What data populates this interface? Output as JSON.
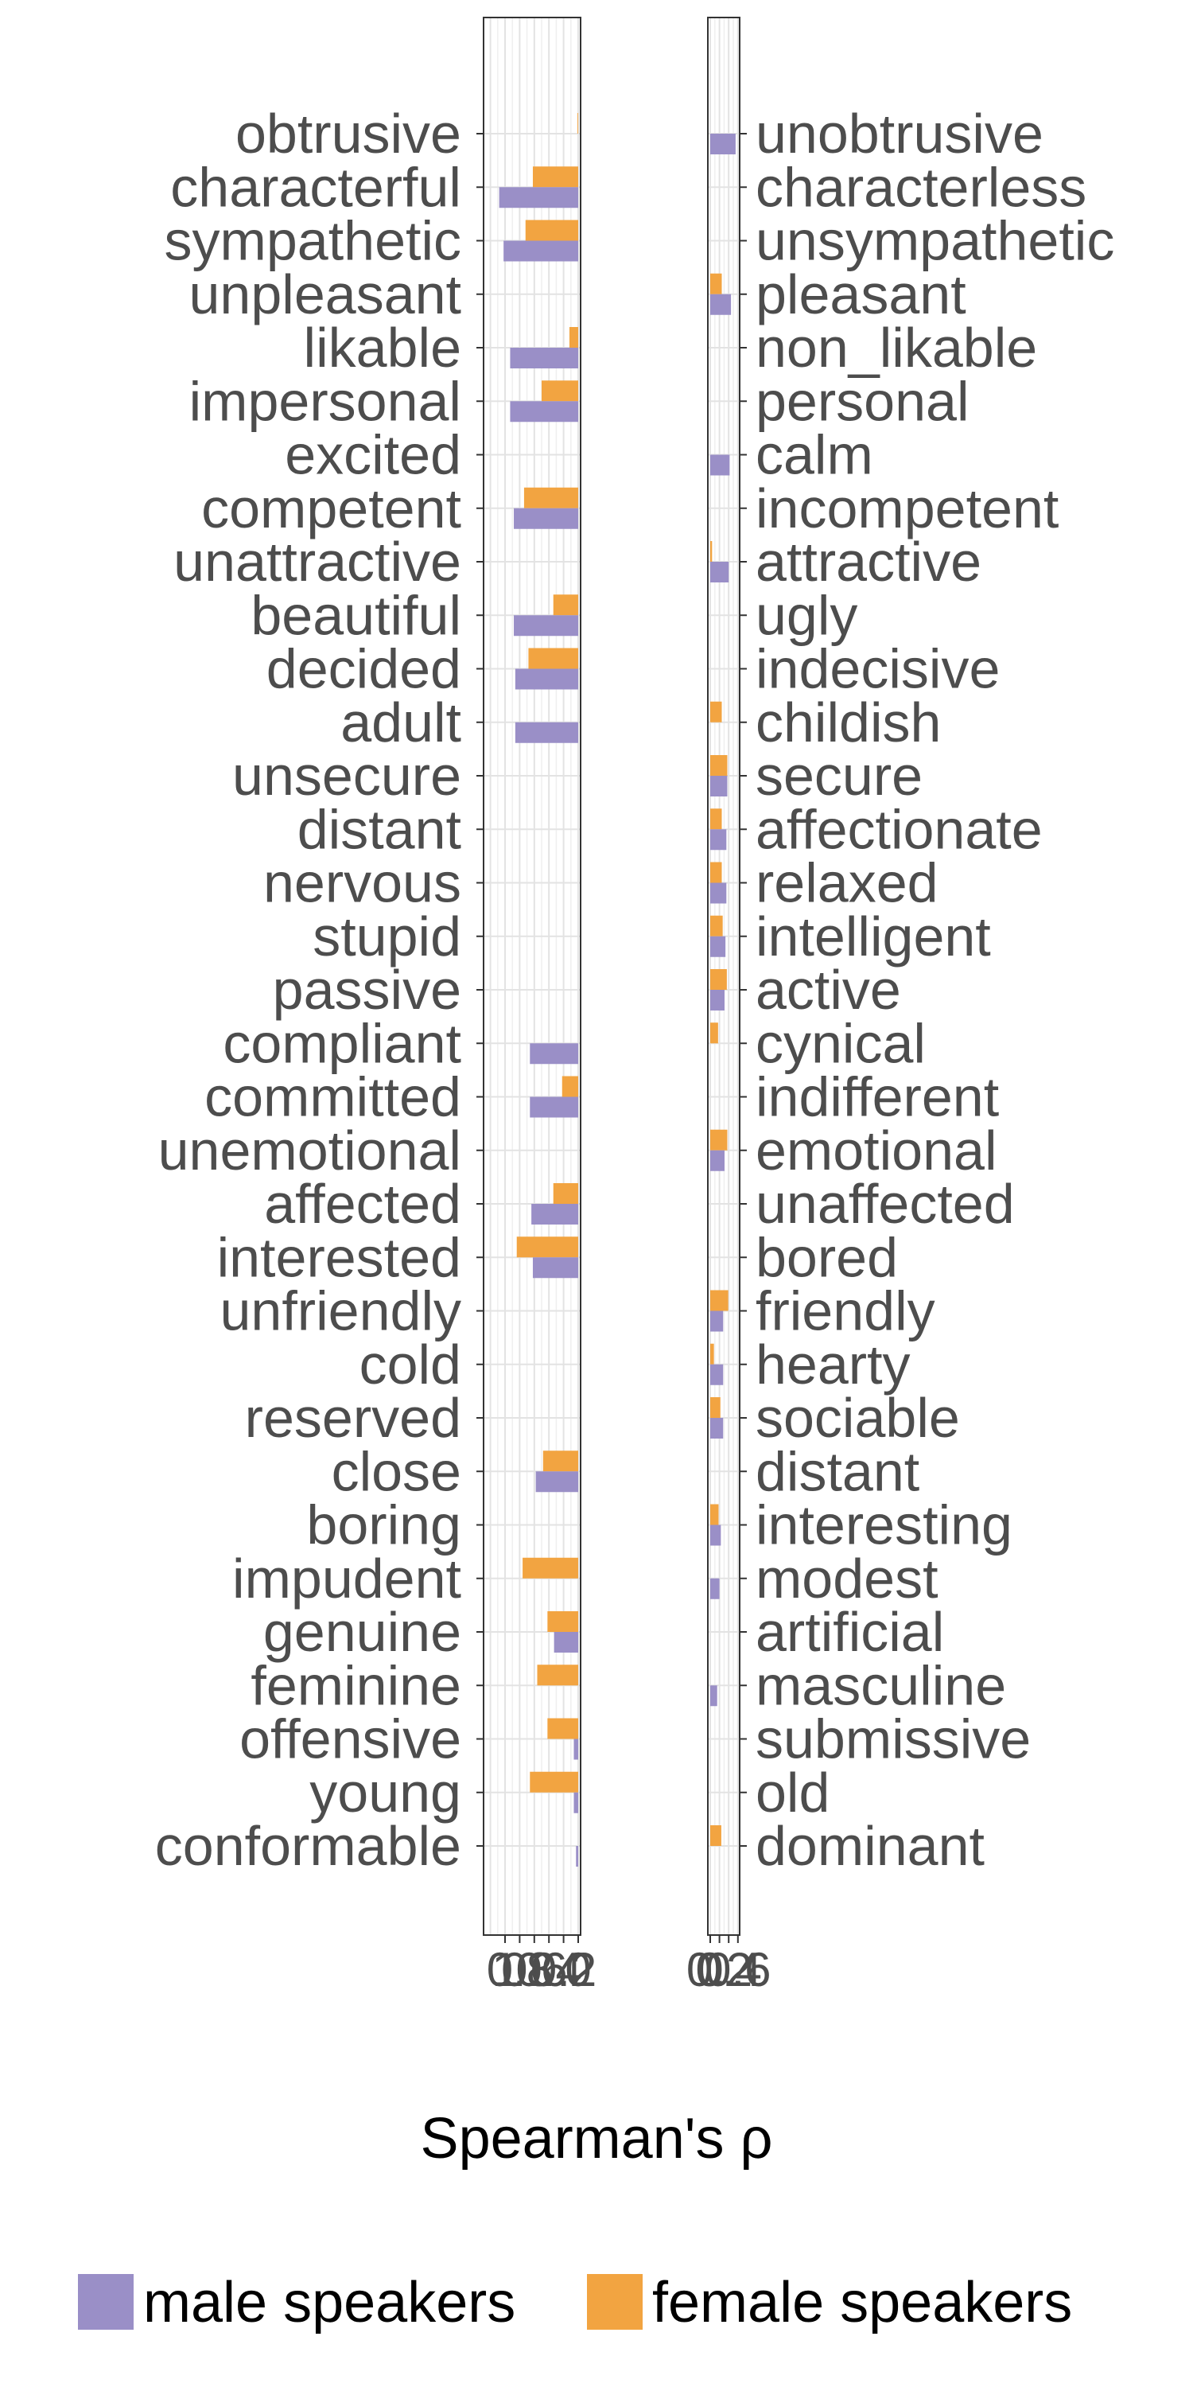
{
  "chart_data": {
    "type": "bar",
    "orientation": "horizontal",
    "xlabel": "Spearman's ρ",
    "grid": true,
    "legend_position": "bottom",
    "series": [
      {
        "name": "male speakers",
        "color": "#9a8fc7"
      },
      {
        "name": "female speakers",
        "color": "#f2a441"
      }
    ],
    "left_panel": {
      "x_direction": "reversed",
      "xlim": [
        0,
        1.25
      ],
      "tick_values": [
        0,
        0.2,
        0.4,
        0.6,
        0.8,
        1
      ],
      "tick_labels": [
        "0",
        "0.2",
        "0.4",
        "0.6",
        "0.8",
        "1"
      ],
      "categories": [
        "obtrusive",
        "characterful",
        "sympathetic",
        "unpleasant",
        "likable",
        "impersonal",
        "excited",
        "competent",
        "unattractive",
        "beautiful",
        "decided",
        "adult",
        "unsecure",
        "distant",
        "nervous",
        "stupid",
        "passive",
        "compliant",
        "committed",
        "unemotional",
        "affected",
        "interested",
        "unfriendly",
        "cold",
        "reserved",
        "close",
        "boring",
        "impudent",
        "genuine",
        "feminine",
        "offensive",
        "young",
        "conformable"
      ],
      "male": [
        0,
        1.08,
        1.02,
        0,
        0.93,
        0.93,
        0,
        0.88,
        0,
        0.88,
        0.86,
        0.86,
        0,
        0,
        0,
        0,
        0,
        0.66,
        0.66,
        0,
        0.64,
        0.62,
        0,
        0,
        0,
        0.58,
        0,
        0,
        0.33,
        0,
        0.06,
        0.06,
        0.03
      ],
      "female": [
        0.01,
        0.62,
        0.72,
        0,
        0.12,
        0.5,
        0,
        0.74,
        0,
        0.34,
        0.68,
        0,
        0,
        0,
        0,
        0,
        0,
        0,
        0.22,
        0,
        0.34,
        0.84,
        0,
        0,
        0,
        0.48,
        0,
        0.76,
        0.42,
        0.56,
        0.42,
        0.66,
        0
      ]
    },
    "right_panel": {
      "xlim": [
        0,
        0.6
      ],
      "tick_values": [
        0,
        0.2,
        0.4,
        0.6
      ],
      "tick_labels": [
        "0",
        "0.2",
        "0.4",
        "0.6"
      ],
      "categories": [
        "unobtrusive",
        "characterless",
        "unsympathetic",
        "pleasant",
        "non_likable",
        "personal",
        "calm",
        "incompetent",
        "attractive",
        "ugly",
        "indecisive",
        "childish",
        "secure",
        "affectionate",
        "relaxed",
        "intelligent",
        "active",
        "cynical",
        "indifferent",
        "emotional",
        "unaffected",
        "bored",
        "friendly",
        "hearty",
        "sociable",
        "distant",
        "interesting",
        "modest",
        "artificial",
        "masculine",
        "submissive",
        "old",
        "dominant"
      ],
      "male": [
        0.55,
        0,
        0,
        0.45,
        0,
        0,
        0.42,
        0,
        0.4,
        0,
        0,
        0,
        0.37,
        0.35,
        0.35,
        0.33,
        0.31,
        0,
        0,
        0.31,
        0,
        0,
        0.28,
        0.28,
        0.28,
        0,
        0.23,
        0.2,
        0,
        0.15,
        0,
        0,
        0
      ],
      "female": [
        0,
        0,
        0,
        0.25,
        0,
        0,
        0,
        0,
        0.04,
        0,
        0,
        0.25,
        0.37,
        0.25,
        0.25,
        0.27,
        0.36,
        0.17,
        0,
        0.37,
        0,
        0,
        0.39,
        0.08,
        0.22,
        0,
        0.18,
        0,
        0,
        0,
        0,
        0,
        0.24
      ]
    }
  }
}
